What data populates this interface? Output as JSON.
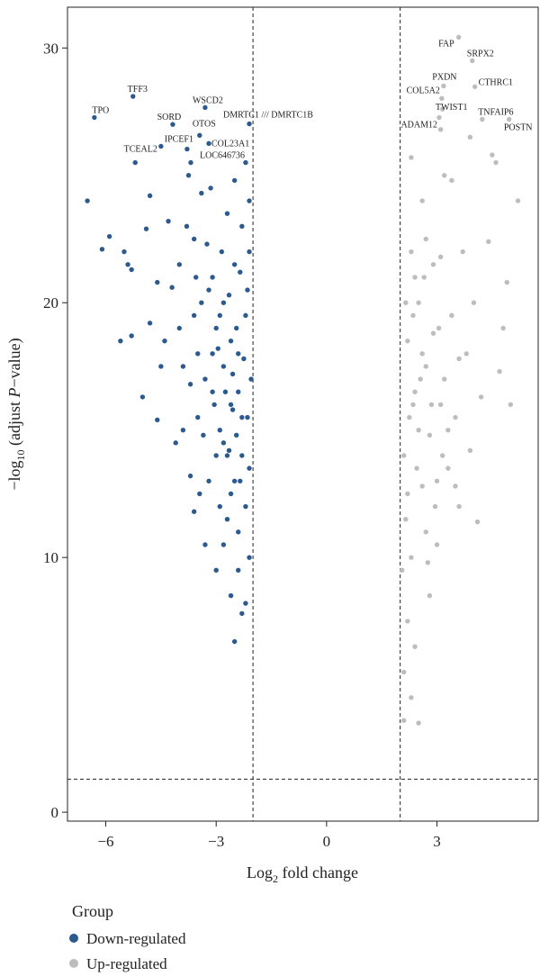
{
  "chart_data": {
    "type": "scatter",
    "x_label": [
      "Log",
      "2",
      " fold change"
    ],
    "y_label": [
      "−log",
      "10",
      " (adjust ",
      "P",
      "−value)"
    ],
    "xlim": [
      -7.04,
      5.75
    ],
    "ylim": [
      -0.35,
      31.6
    ],
    "xticks": [
      {
        "value": -6,
        "label": "−6"
      },
      {
        "value": -3,
        "label": "−3"
      },
      0,
      3
    ],
    "yticks": [
      0,
      10,
      20,
      30
    ],
    "thresholds_x": [
      -2,
      2
    ],
    "threshold_y": 1.3,
    "legend_title": "Group",
    "series": [
      {
        "name": "Down-regulated",
        "color": "#2c5a8f",
        "x": [
          -6.5,
          -6.1,
          -5.9,
          -5.5,
          -5.4,
          -5.3,
          -5.6,
          -5.3,
          -5.0,
          -4.8,
          -4.6,
          -4.8,
          -5.2,
          -4.5,
          -4.2,
          -4.0,
          -3.9,
          -3.7,
          -3.6,
          -3.5,
          -3.4,
          -3.3,
          -3.1,
          -3.0,
          -2.9,
          -2.8,
          -2.7,
          -2.6,
          -2.5,
          -2.4,
          -2.3,
          -2.2,
          -2.1,
          -2.05,
          -2.1,
          -2.2,
          -2.3,
          -2.4,
          -2.5,
          -2.6,
          -2.7,
          -2.8,
          -2.9,
          -3.0,
          -3.1,
          -3.2,
          -3.3,
          -3.4,
          -3.5,
          -3.6,
          -3.8,
          -3.9,
          -4.0,
          -4.1,
          -4.3,
          -4.4,
          -4.6,
          -4.9,
          -2.1,
          -2.2,
          -2.3,
          -2.4,
          -2.5,
          -2.6,
          -2.7,
          -2.8,
          -2.9,
          -3.0,
          -3.1,
          -3.2,
          -2.15,
          -2.25,
          -2.35,
          -2.45,
          -2.55,
          -2.65,
          -2.75,
          -2.85,
          -2.95,
          -3.05,
          -3.15,
          -3.25,
          -3.35,
          -3.45,
          -3.55,
          -3.7,
          -3.75,
          -2.1,
          -2.2,
          -2.4,
          -2.6,
          -2.8,
          -3.6,
          -2.3,
          -2.5,
          -2.15,
          -2.35,
          -2.45,
          -2.55,
          -2.65
        ],
        "values": [
          24.0,
          22.1,
          22.6,
          22.0,
          21.5,
          21.3,
          18.5,
          18.7,
          16.3,
          19.2,
          15.4,
          24.2,
          25.5,
          17.5,
          20.6,
          19.0,
          15.0,
          13.2,
          22.5,
          18.0,
          24.3,
          10.5,
          16.5,
          9.5,
          12.0,
          20.0,
          14.0,
          8.5,
          6.7,
          11.0,
          7.8,
          8.2,
          13.5,
          17.0,
          22.0,
          19.5,
          15.5,
          18.0,
          21.5,
          16.0,
          23.5,
          17.5,
          15.0,
          19.0,
          21.0,
          13.0,
          17.0,
          20.0,
          15.5,
          19.5,
          23.0,
          17.5,
          21.5,
          14.5,
          23.2,
          18.5,
          20.8,
          22.9,
          10.0,
          12.0,
          14.0,
          16.5,
          13.0,
          18.5,
          11.5,
          14.5,
          19.5,
          14.0,
          18.0,
          20.5,
          20.5,
          17.8,
          21.2,
          19.0,
          17.2,
          20.3,
          16.5,
          22.0,
          18.2,
          16.0,
          24.5,
          22.3,
          14.8,
          12.5,
          21.0,
          16.8,
          25.0,
          24.0,
          25.5,
          9.5,
          12.5,
          10.5,
          11.8,
          23.0,
          24.8,
          15.5,
          13.0,
          14.8,
          15.8,
          14.2
        ]
      },
      {
        "name": "Up-regulated",
        "color": "#bdbdbd",
        "x": [
          5.2,
          4.8,
          4.9,
          4.7,
          5.0,
          4.6,
          4.4,
          4.5,
          4.1,
          4.2,
          4.0,
          3.9,
          3.8,
          3.7,
          3.6,
          3.5,
          3.4,
          3.3,
          3.2,
          3.1,
          3.0,
          2.9,
          2.8,
          2.7,
          2.6,
          2.5,
          2.4,
          2.3,
          2.2,
          2.1,
          2.05,
          2.1,
          2.2,
          2.3,
          2.4,
          2.5,
          2.6,
          2.7,
          2.8,
          2.9,
          3.0,
          3.1,
          3.2,
          3.3,
          3.4,
          3.5,
          3.6,
          2.15,
          2.25,
          2.35,
          2.45,
          2.55,
          2.65,
          2.75,
          2.85,
          2.95,
          3.05,
          3.15,
          2.1,
          2.2,
          2.3,
          2.4,
          2.5,
          2.6,
          2.7,
          3.9,
          3.1,
          2.3,
          2.15,
          2.35
        ],
        "values": [
          24.0,
          19.0,
          20.8,
          17.3,
          16.0,
          25.5,
          22.4,
          25.8,
          11.4,
          16.3,
          20.0,
          14.2,
          18.0,
          22.0,
          12.0,
          15.5,
          19.5,
          13.5,
          25.0,
          16.0,
          10.5,
          21.5,
          8.5,
          17.5,
          12.8,
          3.5,
          6.5,
          4.5,
          7.5,
          3.6,
          9.5,
          14.0,
          18.5,
          22.0,
          16.5,
          20.0,
          24.0,
          11.0,
          14.8,
          18.8,
          13.0,
          21.8,
          17.0,
          15.0,
          24.8,
          12.8,
          17.8,
          11.5,
          15.5,
          19.5,
          13.5,
          17.0,
          21.0,
          9.8,
          16.0,
          12.0,
          19.0,
          14.0,
          5.5,
          12.5,
          10.0,
          21.0,
          15.0,
          18.0,
          22.5,
          26.5,
          26.8,
          25.7,
          20.0,
          16.0
        ]
      }
    ],
    "labels": [
      {
        "text": "TPO",
        "series": 0,
        "x": -6.31,
        "y": 27.27
      },
      {
        "text": "TFF3",
        "series": 0,
        "x": -5.26,
        "y": 28.1
      },
      {
        "text": "SORD",
        "series": 0,
        "x": -4.18,
        "y": 27.0
      },
      {
        "text": "WSCD2",
        "series": 0,
        "x": -3.3,
        "y": 27.66
      },
      {
        "text": "OTOS",
        "series": 0,
        "x": -3.45,
        "y": 26.57
      },
      {
        "text": "IPCEF1",
        "series": 0,
        "x": -3.79,
        "y": 26.03
      },
      {
        "text": "COL23A1",
        "series": 0,
        "x": -3.2,
        "y": 26.25
      },
      {
        "text": "TCEAL2",
        "series": 0,
        "x": -4.5,
        "y": 26.14
      },
      {
        "text": "LOC646736",
        "series": 0,
        "x": -3.69,
        "y": 25.5
      },
      {
        "text": "DMRTC1 /// DMRTC1B",
        "series": 0,
        "x": -2.1,
        "y": 27.02
      },
      {
        "text": "FAP",
        "series": 1,
        "x": 3.59,
        "y": 30.42
      },
      {
        "text": "SRPX2",
        "series": 1,
        "x": 3.96,
        "y": 29.5
      },
      {
        "text": "PXDN",
        "series": 1,
        "x": 3.18,
        "y": 28.51
      },
      {
        "text": "CTHRC1",
        "series": 1,
        "x": 4.03,
        "y": 28.48
      },
      {
        "text": "COL5A2",
        "series": 1,
        "x": 3.13,
        "y": 28.02
      },
      {
        "text": "TWIST1",
        "series": 1,
        "x": 3.15,
        "y": 27.6
      },
      {
        "text": "ADAM12",
        "series": 1,
        "x": 3.06,
        "y": 27.27
      },
      {
        "text": "TNFAIP6",
        "series": 1,
        "x": 4.23,
        "y": 27.2
      },
      {
        "text": "POSTN",
        "series": 1,
        "x": 4.96,
        "y": 27.2
      }
    ]
  }
}
